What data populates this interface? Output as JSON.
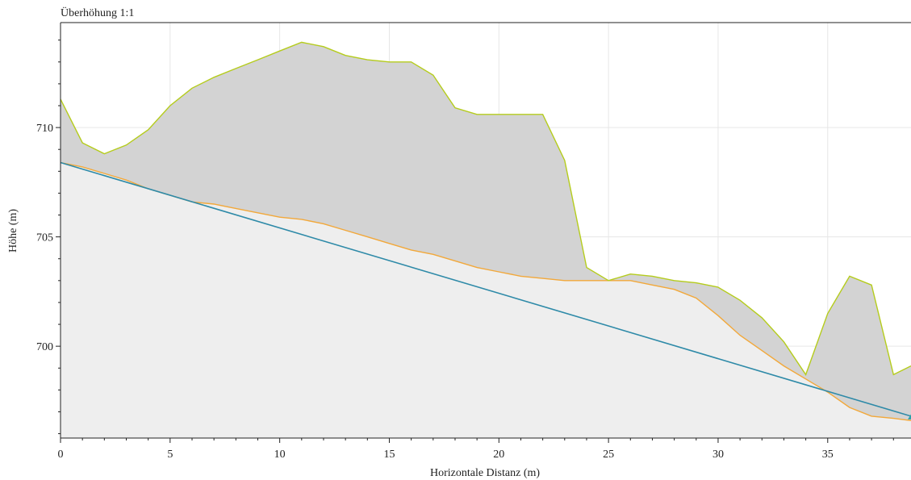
{
  "chart_data": {
    "type": "area",
    "title": "Überhöhung 1:1",
    "xlabel": "Horizontale Distanz (m)",
    "ylabel": "Höhe (m)",
    "xlim": [
      0,
      38.8
    ],
    "ylim": [
      695.8,
      714.8
    ],
    "x_ticks": [
      "0",
      "5",
      "10",
      "15",
      "20",
      "25",
      "30",
      "35"
    ],
    "y_ticks": [
      "700",
      "705",
      "710"
    ],
    "grid": true,
    "colors": {
      "upper_line": "#b5cc1c",
      "upper_fill": "#d3d3d3",
      "lower_line": "#f2a83a",
      "lower_fill": "#eeeeee",
      "straight_line": "#2e8aa8",
      "end_marker": "#2aa0a8"
    },
    "series": [
      {
        "x": [
          0,
          1,
          2,
          3,
          4,
          5,
          6,
          7,
          8,
          9,
          10,
          11,
          12,
          13,
          14,
          15,
          16,
          17,
          18,
          19,
          20,
          21,
          22,
          23,
          24,
          25,
          26,
          27,
          28,
          29,
          30,
          31,
          32,
          33,
          34,
          35,
          36,
          37,
          38,
          38.8
        ],
        "y": [
          711.3,
          709.3,
          708.8,
          709.2,
          709.9,
          711.0,
          711.8,
          712.3,
          712.7,
          713.1,
          713.5,
          713.9,
          713.7,
          713.3,
          713.1,
          713.0,
          713.0,
          712.4,
          710.9,
          710.6,
          710.6,
          710.6,
          710.6,
          708.5,
          703.6,
          703.0,
          703.3,
          703.2,
          703.0,
          702.9,
          702.7,
          702.1,
          701.3,
          700.2,
          698.7,
          701.5,
          703.2,
          702.8,
          698.7,
          699.1
        ]
      },
      {
        "x": [
          0,
          1,
          2,
          3,
          4,
          5,
          6,
          7,
          8,
          9,
          10,
          11,
          12,
          13,
          14,
          15,
          16,
          17,
          18,
          19,
          20,
          21,
          22,
          23,
          24,
          25,
          26,
          27,
          28,
          29,
          30,
          31,
          32,
          33,
          34,
          35,
          36,
          37,
          38,
          38.8
        ],
        "y": [
          708.4,
          708.2,
          707.9,
          707.6,
          707.2,
          706.9,
          706.6,
          706.5,
          706.3,
          706.1,
          705.9,
          705.8,
          705.6,
          705.3,
          705.0,
          704.7,
          704.4,
          704.2,
          703.9,
          703.6,
          703.4,
          703.2,
          703.1,
          703.0,
          703.0,
          703.0,
          703.0,
          702.8,
          702.6,
          702.2,
          701.4,
          700.5,
          699.8,
          699.1,
          698.5,
          697.9,
          697.2,
          696.8,
          696.7,
          696.6
        ]
      },
      {
        "x": [
          0,
          38.8
        ],
        "y": [
          708.4,
          696.8
        ]
      }
    ]
  }
}
